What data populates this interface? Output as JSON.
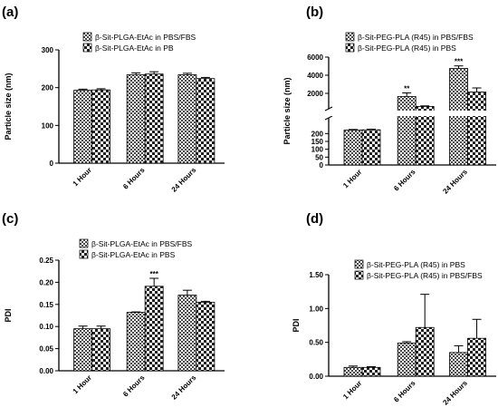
{
  "figure": {
    "panels": [
      {
        "label": "(a)",
        "ylabel": "Particle size (nm)"
      },
      {
        "label": "(b)",
        "ylabel": "Particle size (nm)"
      },
      {
        "label": "(c)",
        "ylabel": "PDI"
      },
      {
        "label": "(d)",
        "ylabel": "PDI"
      }
    ]
  },
  "chart_data": [
    {
      "type": "bar",
      "panel": "(a)",
      "categories": [
        "1 Hour",
        "6 Hours",
        "24 Hours"
      ],
      "ylabel": "Particle size (nm)",
      "ylim": [
        0,
        300
      ],
      "yticks": [
        "0",
        "100",
        "200",
        "300"
      ],
      "legend_position": "top",
      "series": [
        {
          "name": "β-Sit-PLGA-EtAc in PBS/FBS",
          "pattern": "dense",
          "values": [
            193,
            234,
            234
          ],
          "errors": [
            3,
            5,
            4
          ]
        },
        {
          "name": "β-Sit-PLGA-EtAc in PB",
          "pattern": "check",
          "values": [
            194,
            236,
            224
          ],
          "errors": [
            3,
            6,
            3
          ]
        }
      ],
      "annotations": []
    },
    {
      "type": "bar",
      "panel": "(b)",
      "categories": [
        "1 Hour",
        "6 Hours",
        "24 Hours"
      ],
      "ylabel": "Particle size (nm)",
      "broken_axis": {
        "lower": [
          0,
          300
        ],
        "upper": [
          300,
          6000
        ]
      },
      "yticks": [
        "0",
        "50",
        "100",
        "150",
        "200",
        "2000",
        "4000",
        "6000"
      ],
      "legend_position": "top",
      "series": [
        {
          "name": "β-Sit-PEG-PLA (R45) in PBS/FBS",
          "pattern": "dense",
          "values": [
            222,
            1650,
            4750
          ],
          "errors": [
            4,
            400,
            280
          ]
        },
        {
          "name": "β-Sit-PEG-PLA (R45) in PBS",
          "pattern": "check",
          "values": [
            224,
            560,
            2150
          ],
          "errors": [
            4,
            60,
            450
          ]
        }
      ],
      "annotations": [
        {
          "text": "**",
          "category": "6 Hours",
          "series": 0
        },
        {
          "text": "***",
          "category": "24 Hours",
          "series": 0
        }
      ]
    },
    {
      "type": "bar",
      "panel": "(c)",
      "categories": [
        "1 Hour",
        "6 Hours",
        "24 Hours"
      ],
      "ylabel": "PDI",
      "ylim": [
        0,
        0.25
      ],
      "yticks": [
        "0.00",
        "0.05",
        "0.10",
        "0.15",
        "0.20",
        "0.25"
      ],
      "legend_position": "top",
      "series": [
        {
          "name": "β-Sit-PLGA-EtAc in PBS/FBS",
          "pattern": "dense",
          "values": [
            0.095,
            0.132,
            0.171
          ],
          "errors": [
            0.006,
            0.001,
            0.011
          ]
        },
        {
          "name": "β-Sit-PLGA-EtAc in PBS",
          "pattern": "check",
          "values": [
            0.095,
            0.191,
            0.155
          ],
          "errors": [
            0.006,
            0.018,
            0.002
          ]
        }
      ],
      "annotations": [
        {
          "text": "***",
          "category": "6 Hours",
          "series": 1
        }
      ]
    },
    {
      "type": "bar",
      "panel": "(d)",
      "categories": [
        "1 Hour",
        "6 Hours",
        "24 Hours"
      ],
      "ylabel": "PDI",
      "ylim": [
        0,
        1.5
      ],
      "yticks": [
        "0.00",
        "0.50",
        "1.00",
        "1.50"
      ],
      "legend_position": "top",
      "series": [
        {
          "name": "β-Sit-PEG-PLA (R45)  in PBS",
          "pattern": "dense",
          "values": [
            0.13,
            0.49,
            0.35
          ],
          "errors": [
            0.02,
            0.02,
            0.1
          ]
        },
        {
          "name": "β-Sit-PEG-PLA (R45) in PBS/FBS",
          "pattern": "check",
          "values": [
            0.13,
            0.72,
            0.56
          ],
          "errors": [
            0.01,
            0.49,
            0.28
          ]
        }
      ],
      "annotations": []
    }
  ]
}
